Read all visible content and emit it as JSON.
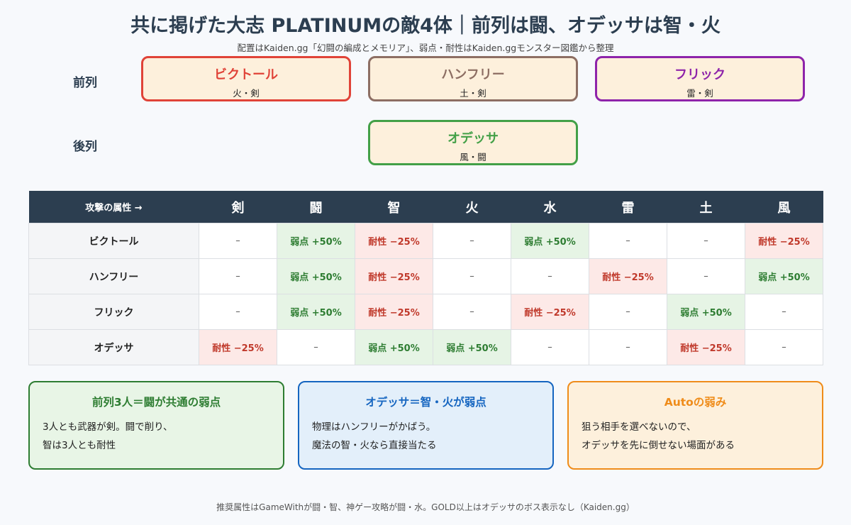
{
  "title": "共に掲げた大志 PLATINUMの敵4体｜前列は闘、オデッサは智・火",
  "subtitle": "配置はKaiden.gg「幻闘の編成とメモリア」、弱点・耐性はKaiden.ggモンスター図鑑から整理",
  "formation": {
    "front_label": "前列",
    "back_label": "後列",
    "units": [
      {
        "name": "ビクトール",
        "attr": "火・剣",
        "color": "#e04338"
      },
      {
        "name": "ハンフリー",
        "attr": "土・剣",
        "color": "#8d6e63"
      },
      {
        "name": "フリック",
        "attr": "雷・剣",
        "color": "#8e24aa"
      },
      {
        "name": "オデッサ",
        "attr": "風・闘",
        "color": "#43a047"
      }
    ]
  },
  "table": {
    "corner": "攻撃の属性 →",
    "columns": [
      "剣",
      "闘",
      "智",
      "火",
      "水",
      "雷",
      "土",
      "風"
    ],
    "rows": [
      {
        "name": "ビクトール",
        "cells": [
          {
            "text": "–",
            "type": "neutral"
          },
          {
            "text": "弱点 +50%",
            "type": "weak"
          },
          {
            "text": "耐性 −25%",
            "type": "resist"
          },
          {
            "text": "–",
            "type": "neutral"
          },
          {
            "text": "弱点 +50%",
            "type": "weak"
          },
          {
            "text": "–",
            "type": "neutral"
          },
          {
            "text": "–",
            "type": "neutral"
          },
          {
            "text": "耐性 −25%",
            "type": "resist"
          }
        ]
      },
      {
        "name": "ハンフリー",
        "cells": [
          {
            "text": "–",
            "type": "neutral"
          },
          {
            "text": "弱点 +50%",
            "type": "weak"
          },
          {
            "text": "耐性 −25%",
            "type": "resist"
          },
          {
            "text": "–",
            "type": "neutral"
          },
          {
            "text": "–",
            "type": "neutral"
          },
          {
            "text": "耐性 −25%",
            "type": "resist"
          },
          {
            "text": "–",
            "type": "neutral"
          },
          {
            "text": "弱点 +50%",
            "type": "weak"
          }
        ]
      },
      {
        "name": "フリック",
        "cells": [
          {
            "text": "–",
            "type": "neutral"
          },
          {
            "text": "弱点 +50%",
            "type": "weak"
          },
          {
            "text": "耐性 −25%",
            "type": "resist"
          },
          {
            "text": "–",
            "type": "neutral"
          },
          {
            "text": "耐性 −25%",
            "type": "resist"
          },
          {
            "text": "–",
            "type": "neutral"
          },
          {
            "text": "弱点 +50%",
            "type": "weak"
          },
          {
            "text": "–",
            "type": "neutral"
          }
        ]
      },
      {
        "name": "オデッサ",
        "cells": [
          {
            "text": "耐性 −25%",
            "type": "resist"
          },
          {
            "text": "–",
            "type": "neutral"
          },
          {
            "text": "弱点 +50%",
            "type": "weak"
          },
          {
            "text": "弱点 +50%",
            "type": "weak"
          },
          {
            "text": "–",
            "type": "neutral"
          },
          {
            "text": "–",
            "type": "neutral"
          },
          {
            "text": "耐性 −25%",
            "type": "resist"
          },
          {
            "text": "–",
            "type": "neutral"
          }
        ]
      }
    ]
  },
  "notes": [
    {
      "title": "前列3人＝闘が共通の弱点",
      "lines": [
        "3人とも武器が剣。闘で削り、",
        "智は3人とも耐性"
      ],
      "color": "#2e7d32",
      "bg": "#e8f5e6"
    },
    {
      "title": "オデッサ＝智・火が弱点",
      "lines": [
        "物理はハンフリーがかばう。",
        "魔法の智・火なら直接当たる"
      ],
      "color": "#1565c0",
      "bg": "#e3effa"
    },
    {
      "title": "Autoの弱み",
      "lines": [
        "狙う相手を選べないので、",
        "オデッサを先に倒せない場面がある"
      ],
      "color": "#ef8c1a",
      "bg": "#fdf0dc"
    }
  ],
  "footer": "推奨属性はGameWithが闘・智、神ゲー攻略が闘・水。GOLD以上はオデッサのボス表示なし（Kaiden.gg）"
}
